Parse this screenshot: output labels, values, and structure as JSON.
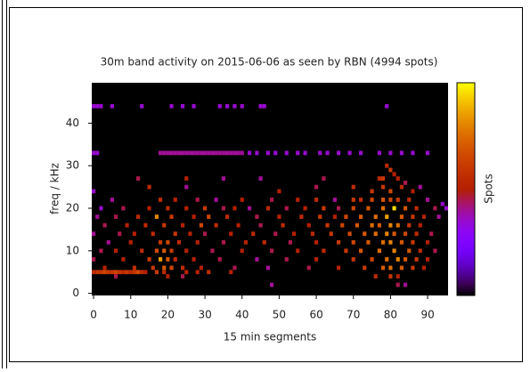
{
  "chart_data": {
    "type": "heatmap",
    "title": "30m band activity on 2015-06-06 as seen by RBN (4994 spots)",
    "xlabel": "15 min segments",
    "ylabel": "freq / kHz",
    "colorbar_label": "Spots",
    "xlim": [
      -0.5,
      95.5
    ],
    "ylim": [
      -0.5,
      49.5
    ],
    "zlim": [
      0,
      1
    ],
    "xticks": [
      0,
      10,
      20,
      30,
      40,
      50,
      60,
      70,
      80,
      90
    ],
    "yticks": [
      0,
      10,
      20,
      30,
      40
    ],
    "cells": [
      [
        0,
        44,
        0.35
      ],
      [
        1,
        44,
        0.35
      ],
      [
        2,
        44,
        0.35
      ],
      [
        5,
        44,
        0.35
      ],
      [
        13,
        44,
        0.35
      ],
      [
        21,
        44,
        0.35
      ],
      [
        24,
        44,
        0.35
      ],
      [
        27,
        44,
        0.35
      ],
      [
        34,
        44,
        0.35
      ],
      [
        36,
        44,
        0.35
      ],
      [
        38,
        44,
        0.35
      ],
      [
        40,
        44,
        0.35
      ],
      [
        45,
        44,
        0.35
      ],
      [
        46,
        44,
        0.35
      ],
      [
        79,
        44,
        0.35
      ],
      [
        0,
        33,
        0.35
      ],
      [
        1,
        33,
        0.35
      ],
      [
        18,
        33,
        0.4
      ],
      [
        19,
        33,
        0.4
      ],
      [
        20,
        33,
        0.4
      ],
      [
        21,
        33,
        0.4
      ],
      [
        22,
        33,
        0.4
      ],
      [
        23,
        33,
        0.4
      ],
      [
        24,
        33,
        0.4
      ],
      [
        25,
        33,
        0.4
      ],
      [
        26,
        33,
        0.4
      ],
      [
        27,
        33,
        0.4
      ],
      [
        28,
        33,
        0.4
      ],
      [
        29,
        33,
        0.4
      ],
      [
        30,
        33,
        0.4
      ],
      [
        31,
        33,
        0.4
      ],
      [
        32,
        33,
        0.4
      ],
      [
        33,
        33,
        0.4
      ],
      [
        34,
        33,
        0.4
      ],
      [
        35,
        33,
        0.4
      ],
      [
        36,
        33,
        0.4
      ],
      [
        37,
        33,
        0.4
      ],
      [
        38,
        33,
        0.4
      ],
      [
        39,
        33,
        0.4
      ],
      [
        40,
        33,
        0.4
      ],
      [
        42,
        33,
        0.35
      ],
      [
        44,
        33,
        0.35
      ],
      [
        47,
        33,
        0.35
      ],
      [
        49,
        33,
        0.35
      ],
      [
        52,
        33,
        0.35
      ],
      [
        55,
        33,
        0.35
      ],
      [
        57,
        33,
        0.35
      ],
      [
        61,
        33,
        0.35
      ],
      [
        63,
        33,
        0.35
      ],
      [
        66,
        33,
        0.35
      ],
      [
        69,
        33,
        0.35
      ],
      [
        72,
        33,
        0.35
      ],
      [
        77,
        33,
        0.35
      ],
      [
        80,
        33,
        0.35
      ],
      [
        83,
        33,
        0.35
      ],
      [
        86,
        33,
        0.35
      ],
      [
        90,
        33,
        0.35
      ],
      [
        79,
        30,
        0.55
      ],
      [
        80,
        29,
        0.6
      ],
      [
        81,
        28,
        0.5
      ],
      [
        12,
        27,
        0.45
      ],
      [
        25,
        27,
        0.5
      ],
      [
        35,
        27,
        0.4
      ],
      [
        45,
        27,
        0.4
      ],
      [
        62,
        27,
        0.45
      ],
      [
        77,
        27,
        0.55
      ],
      [
        78,
        27,
        0.6
      ],
      [
        82,
        27,
        0.5
      ],
      [
        84,
        26,
        0.45
      ],
      [
        0,
        24,
        0.35
      ],
      [
        15,
        25,
        0.55
      ],
      [
        25,
        25,
        0.4
      ],
      [
        50,
        24,
        0.5
      ],
      [
        60,
        25,
        0.45
      ],
      [
        70,
        25,
        0.55
      ],
      [
        75,
        24,
        0.6
      ],
      [
        78,
        25,
        0.6
      ],
      [
        80,
        24,
        0.65
      ],
      [
        83,
        25,
        0.55
      ],
      [
        86,
        24,
        0.5
      ],
      [
        88,
        25,
        0.4
      ],
      [
        5,
        22,
        0.4
      ],
      [
        18,
        22,
        0.55
      ],
      [
        22,
        22,
        0.5
      ],
      [
        28,
        22,
        0.45
      ],
      [
        33,
        22,
        0.4
      ],
      [
        40,
        22,
        0.5
      ],
      [
        48,
        22,
        0.45
      ],
      [
        55,
        22,
        0.5
      ],
      [
        60,
        22,
        0.55
      ],
      [
        65,
        22,
        0.4
      ],
      [
        70,
        22,
        0.6
      ],
      [
        72,
        22,
        0.55
      ],
      [
        75,
        22,
        0.65
      ],
      [
        78,
        22,
        0.7
      ],
      [
        80,
        22,
        0.65
      ],
      [
        82,
        22,
        0.6
      ],
      [
        85,
        22,
        0.55
      ],
      [
        90,
        22,
        0.4
      ],
      [
        94,
        21,
        0.35
      ],
      [
        2,
        20,
        0.35
      ],
      [
        8,
        20,
        0.45
      ],
      [
        15,
        20,
        0.5
      ],
      [
        20,
        20,
        0.55
      ],
      [
        25,
        20,
        0.5
      ],
      [
        30,
        20,
        0.6
      ],
      [
        35,
        20,
        0.45
      ],
      [
        38,
        20,
        0.5
      ],
      [
        42,
        20,
        0.4
      ],
      [
        47,
        20,
        0.55
      ],
      [
        52,
        20,
        0.45
      ],
      [
        57,
        20,
        0.5
      ],
      [
        62,
        20,
        0.6
      ],
      [
        66,
        20,
        0.45
      ],
      [
        70,
        20,
        0.65
      ],
      [
        74,
        20,
        0.7
      ],
      [
        78,
        20,
        0.75
      ],
      [
        81,
        20,
        0.95
      ],
      [
        84,
        20,
        0.7
      ],
      [
        87,
        20,
        0.55
      ],
      [
        92,
        20,
        0.45
      ],
      [
        95,
        20,
        0.35
      ],
      [
        1,
        18,
        0.4
      ],
      [
        6,
        18,
        0.45
      ],
      [
        12,
        18,
        0.55
      ],
      [
        17,
        18,
        0.8
      ],
      [
        21,
        18,
        0.6
      ],
      [
        27,
        18,
        0.5
      ],
      [
        31,
        18,
        0.65
      ],
      [
        36,
        18,
        0.55
      ],
      [
        44,
        18,
        0.45
      ],
      [
        50,
        18,
        0.5
      ],
      [
        56,
        18,
        0.55
      ],
      [
        61,
        18,
        0.6
      ],
      [
        65,
        18,
        0.5
      ],
      [
        68,
        18,
        0.65
      ],
      [
        72,
        18,
        0.7
      ],
      [
        76,
        18,
        0.75
      ],
      [
        79,
        18,
        0.85
      ],
      [
        83,
        18,
        0.7
      ],
      [
        86,
        18,
        0.6
      ],
      [
        89,
        18,
        0.5
      ],
      [
        93,
        18,
        0.4
      ],
      [
        3,
        16,
        0.45
      ],
      [
        9,
        16,
        0.5
      ],
      [
        14,
        16,
        0.55
      ],
      [
        19,
        16,
        0.6
      ],
      [
        24,
        16,
        0.5
      ],
      [
        29,
        16,
        0.65
      ],
      [
        33,
        16,
        0.55
      ],
      [
        39,
        16,
        0.5
      ],
      [
        45,
        16,
        0.45
      ],
      [
        51,
        16,
        0.55
      ],
      [
        58,
        16,
        0.5
      ],
      [
        63,
        16,
        0.6
      ],
      [
        67,
        16,
        0.65
      ],
      [
        71,
        16,
        0.7
      ],
      [
        75,
        16,
        0.75
      ],
      [
        77,
        16,
        0.7
      ],
      [
        80,
        16,
        0.8
      ],
      [
        82,
        16,
        0.75
      ],
      [
        85,
        16,
        0.6
      ],
      [
        88,
        16,
        0.5
      ],
      [
        0,
        14,
        0.4
      ],
      [
        7,
        14,
        0.45
      ],
      [
        11,
        14,
        0.5
      ],
      [
        16,
        14,
        0.55
      ],
      [
        22,
        14,
        0.6
      ],
      [
        26,
        14,
        0.5
      ],
      [
        30,
        14,
        0.45
      ],
      [
        37,
        14,
        0.5
      ],
      [
        43,
        14,
        0.55
      ],
      [
        49,
        14,
        0.45
      ],
      [
        54,
        14,
        0.5
      ],
      [
        59,
        14,
        0.55
      ],
      [
        64,
        14,
        0.6
      ],
      [
        69,
        14,
        0.65
      ],
      [
        73,
        14,
        0.7
      ],
      [
        76,
        14,
        0.75
      ],
      [
        79,
        14,
        0.8
      ],
      [
        81,
        14,
        0.7
      ],
      [
        84,
        14,
        0.65
      ],
      [
        87,
        14,
        0.55
      ],
      [
        91,
        14,
        0.45
      ],
      [
        4,
        12,
        0.4
      ],
      [
        10,
        12,
        0.5
      ],
      [
        18,
        12,
        0.6
      ],
      [
        20,
        12,
        0.65
      ],
      [
        23,
        12,
        0.55
      ],
      [
        28,
        12,
        0.5
      ],
      [
        35,
        12,
        0.45
      ],
      [
        41,
        12,
        0.5
      ],
      [
        46,
        12,
        0.55
      ],
      [
        53,
        12,
        0.45
      ],
      [
        60,
        12,
        0.5
      ],
      [
        66,
        12,
        0.6
      ],
      [
        70,
        12,
        0.65
      ],
      [
        74,
        12,
        0.7
      ],
      [
        78,
        12,
        0.75
      ],
      [
        80,
        12,
        0.8
      ],
      [
        83,
        12,
        0.7
      ],
      [
        86,
        12,
        0.6
      ],
      [
        90,
        12,
        0.5
      ],
      [
        2,
        10,
        0.45
      ],
      [
        6,
        10,
        0.5
      ],
      [
        13,
        10,
        0.55
      ],
      [
        17,
        10,
        0.65
      ],
      [
        19,
        10,
        0.7
      ],
      [
        21,
        10,
        0.6
      ],
      [
        25,
        10,
        0.5
      ],
      [
        32,
        10,
        0.45
      ],
      [
        40,
        10,
        0.5
      ],
      [
        48,
        10,
        0.45
      ],
      [
        55,
        10,
        0.5
      ],
      [
        62,
        10,
        0.55
      ],
      [
        68,
        10,
        0.6
      ],
      [
        72,
        10,
        0.7
      ],
      [
        77,
        10,
        0.75
      ],
      [
        81,
        10,
        0.8
      ],
      [
        85,
        10,
        0.7
      ],
      [
        88,
        10,
        0.55
      ],
      [
        92,
        10,
        0.45
      ],
      [
        0,
        8,
        0.45
      ],
      [
        8,
        8,
        0.5
      ],
      [
        15,
        8,
        0.6
      ],
      [
        18,
        8,
        0.85
      ],
      [
        20,
        8,
        0.7
      ],
      [
        22,
        8,
        0.55
      ],
      [
        27,
        8,
        0.5
      ],
      [
        34,
        8,
        0.45
      ],
      [
        44,
        8,
        0.4
      ],
      [
        52,
        8,
        0.45
      ],
      [
        60,
        8,
        0.5
      ],
      [
        70,
        8,
        0.6
      ],
      [
        75,
        8,
        0.65
      ],
      [
        79,
        8,
        0.75
      ],
      [
        82,
        8,
        0.8
      ],
      [
        84,
        8,
        0.7
      ],
      [
        87,
        8,
        0.6
      ],
      [
        90,
        8,
        0.5
      ],
      [
        3,
        6,
        0.5
      ],
      [
        11,
        6,
        0.55
      ],
      [
        16,
        6,
        0.6
      ],
      [
        19,
        6,
        0.7
      ],
      [
        21,
        6,
        0.65
      ],
      [
        24,
        6,
        0.55
      ],
      [
        29,
        6,
        0.5
      ],
      [
        38,
        6,
        0.45
      ],
      [
        47,
        6,
        0.4
      ],
      [
        58,
        6,
        0.45
      ],
      [
        66,
        6,
        0.5
      ],
      [
        73,
        6,
        0.6
      ],
      [
        78,
        6,
        0.7
      ],
      [
        80,
        6,
        0.75
      ],
      [
        83,
        6,
        0.7
      ],
      [
        86,
        6,
        0.6
      ],
      [
        89,
        6,
        0.5
      ],
      [
        0,
        5,
        0.55
      ],
      [
        1,
        5,
        0.6
      ],
      [
        2,
        5,
        0.6
      ],
      [
        3,
        5,
        0.65
      ],
      [
        4,
        5,
        0.6
      ],
      [
        5,
        5,
        0.6
      ],
      [
        6,
        5,
        0.65
      ],
      [
        7,
        5,
        0.6
      ],
      [
        8,
        5,
        0.55
      ],
      [
        9,
        5,
        0.6
      ],
      [
        10,
        5,
        0.55
      ],
      [
        11,
        5,
        0.6
      ],
      [
        12,
        5,
        0.65
      ],
      [
        13,
        5,
        0.55
      ],
      [
        14,
        5,
        0.5
      ],
      [
        17,
        5,
        0.6
      ],
      [
        19,
        5,
        0.55
      ],
      [
        25,
        5,
        0.5
      ],
      [
        28,
        5,
        0.5
      ],
      [
        31,
        5,
        0.55
      ],
      [
        37,
        5,
        0.5
      ],
      [
        6,
        4,
        0.45
      ],
      [
        20,
        4,
        0.5
      ],
      [
        24,
        4,
        0.45
      ],
      [
        76,
        4,
        0.55
      ],
      [
        80,
        4,
        0.6
      ],
      [
        82,
        4,
        0.5
      ],
      [
        48,
        2,
        0.4
      ],
      [
        82,
        2,
        0.45
      ],
      [
        84,
        2,
        0.4
      ]
    ]
  }
}
